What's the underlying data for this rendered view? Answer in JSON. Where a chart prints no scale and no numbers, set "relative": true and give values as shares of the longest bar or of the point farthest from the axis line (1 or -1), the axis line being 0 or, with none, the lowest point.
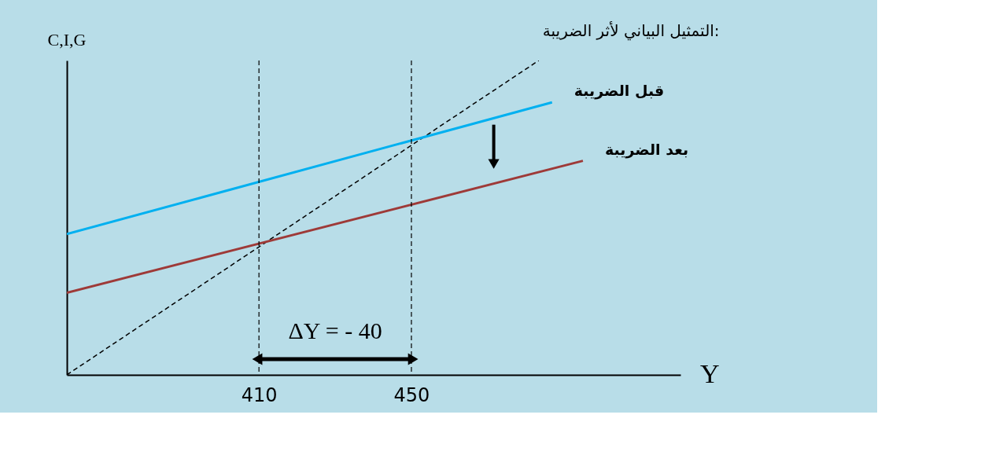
{
  "chart_data": {
    "type": "line",
    "title": "التمثيل البياني لأثر الضريبة:",
    "xlabel": "Y",
    "ylabel": "C,I,G",
    "relative": true,
    "xlim": [
      359.6,
      520.6
    ],
    "xticks": [
      410,
      450
    ],
    "tick_labels": "x",
    "grid": false,
    "series": [
      {
        "x": [
          359.6,
          483.4
        ],
        "values": [
          0,
          1
        ],
        "color": "#000000",
        "line_style": "dashed"
      },
      {
        "name": "قبل الضريبة",
        "x": [
          359.6,
          486.9
        ],
        "values": [
          0.448,
          0.867
        ],
        "color": "#00b0f0",
        "line_style": "solid"
      },
      {
        "name": "بعد الضريبة",
        "x": [
          359.6,
          495.0
        ],
        "values": [
          0.261,
          0.681
        ],
        "color": "#9e3a38",
        "line_style": "solid"
      }
    ],
    "ref_lines": [
      {
        "axis": "x",
        "value": 410,
        "label": null,
        "line_style": "dashed"
      },
      {
        "axis": "x",
        "value": 450,
        "label": null,
        "line_style": "dashed"
      }
    ],
    "annotations": [
      "ΔY = - 40"
    ]
  }
}
